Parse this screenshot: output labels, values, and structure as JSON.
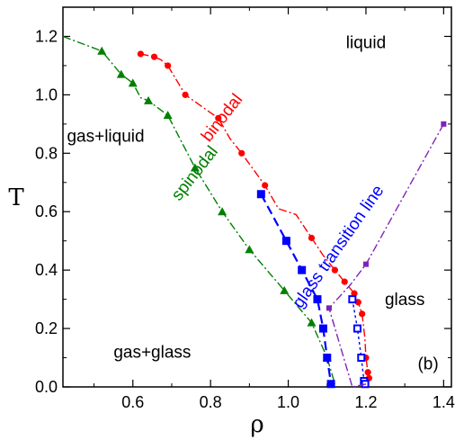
{
  "chart_data": {
    "type": "line",
    "xlabel": "ρ",
    "ylabel": "T",
    "xlim": [
      0.42,
      1.42
    ],
    "ylim": [
      0.0,
      1.3
    ],
    "x_ticks": [
      0.6,
      0.8,
      1.0,
      1.2,
      1.4
    ],
    "x_tick_labels": [
      "0.6",
      "0.8",
      "1.0",
      "1.2",
      "1.4"
    ],
    "y_ticks": [
      0.0,
      0.2,
      0.4,
      0.6,
      0.8,
      1.0,
      1.2
    ],
    "y_tick_labels": [
      "0.0",
      "0.2",
      "0.4",
      "0.6",
      "0.8",
      "1.0",
      "1.2"
    ],
    "grid": false,
    "series": [
      {
        "name": "binodal",
        "color": "#ff0000",
        "line_style": "dash-dot",
        "marker": "circle",
        "x": [
          0.62,
          0.655,
          0.672,
          0.69,
          0.735,
          0.82,
          0.85,
          0.88,
          0.94,
          0.975,
          1.02,
          1.06,
          1.09,
          1.12,
          1.145,
          1.17,
          1.18,
          1.19,
          1.197,
          1.2,
          1.205,
          1.208
        ],
        "y": [
          1.14,
          1.13,
          1.12,
          1.1,
          1.0,
          0.92,
          0.85,
          0.8,
          0.69,
          0.61,
          0.59,
          0.51,
          0.45,
          0.4,
          0.36,
          0.32,
          0.29,
          0.25,
          0.17,
          0.1,
          0.05,
          0.03
        ],
        "marker_x": [
          0.62,
          0.655,
          0.69,
          0.735,
          0.82,
          0.88,
          0.94,
          1.06,
          1.12,
          1.145,
          1.17,
          1.18,
          1.19,
          1.2,
          1.205,
          1.208
        ],
        "marker_y": [
          1.14,
          1.13,
          1.1,
          1.0,
          0.92,
          0.8,
          0.69,
          0.51,
          0.4,
          0.36,
          0.32,
          0.29,
          0.25,
          0.1,
          0.05,
          0.03
        ]
      },
      {
        "name": "spinodal",
        "color": "#008000",
        "line_style": "dash-dot",
        "marker": "triangle",
        "x": [
          0.42,
          0.52,
          0.57,
          0.6,
          0.62,
          0.64,
          0.69,
          0.76,
          0.83,
          0.9,
          0.99,
          1.06,
          1.1,
          1.12
        ],
        "y": [
          1.2,
          1.15,
          1.07,
          1.04,
          0.99,
          0.98,
          0.93,
          0.75,
          0.6,
          0.47,
          0.33,
          0.22,
          0.1,
          0.01
        ],
        "marker_x": [
          0.52,
          0.57,
          0.6,
          0.64,
          0.69,
          0.76,
          0.83,
          0.9,
          0.99,
          1.06,
          1.1
        ],
        "marker_y": [
          1.15,
          1.07,
          1.04,
          0.98,
          0.93,
          0.75,
          0.6,
          0.47,
          0.33,
          0.22,
          0.1
        ]
      },
      {
        "name": "glass transition line (filled)",
        "color": "#0000ff",
        "line_style": "dashed",
        "marker": "square",
        "x": [
          0.93,
          0.995,
          1.035,
          1.075,
          1.09,
          1.1,
          1.11
        ],
        "y": [
          0.66,
          0.5,
          0.4,
          0.3,
          0.2,
          0.1,
          0.01
        ]
      },
      {
        "name": "glass transition line (open)",
        "color": "#0000ff",
        "line_style": "dotted",
        "marker": "square-open",
        "x": [
          1.165,
          1.178,
          1.188,
          1.195,
          1.198
        ],
        "y": [
          0.3,
          0.2,
          0.1,
          0.02,
          0.01
        ]
      },
      {
        "name": "purple line",
        "color": "#7f22b8",
        "line_style": "dash-dot",
        "marker": "square-small",
        "x": [
          1.2,
          1.165,
          1.105,
          1.16,
          1.2,
          1.4
        ],
        "y": [
          0.01,
          0.0,
          0.27,
          0.35,
          0.42,
          0.9
        ],
        "marker_x": [
          1.105,
          1.2,
          1.4
        ],
        "marker_y": [
          0.27,
          0.42,
          0.9
        ]
      }
    ],
    "annotations": [
      {
        "text": "liquid",
        "color": "#000000",
        "x": 1.2,
        "y": 1.16,
        "rotation": 0
      },
      {
        "text": "gas+liquid",
        "color": "#000000",
        "x": 0.53,
        "y": 0.84,
        "rotation": 0
      },
      {
        "text": "gas+glass",
        "color": "#000000",
        "x": 0.65,
        "y": 0.1,
        "rotation": 0
      },
      {
        "text": "glass",
        "color": "#000000",
        "x": 1.3,
        "y": 0.28,
        "rotation": 0
      },
      {
        "text": "(b)",
        "color": "#000000",
        "x": 1.36,
        "y": 0.06,
        "rotation": 0
      },
      {
        "text": "binodal",
        "color": "#ff0000",
        "x": 0.84,
        "y": 0.91,
        "rotation": -52
      },
      {
        "text": "spinodal",
        "color": "#008000",
        "x": 0.77,
        "y": 0.72,
        "rotation": -52
      },
      {
        "text": "glass transition line",
        "color": "#0000ff",
        "x": 1.14,
        "y": 0.47,
        "rotation": -55
      }
    ]
  }
}
